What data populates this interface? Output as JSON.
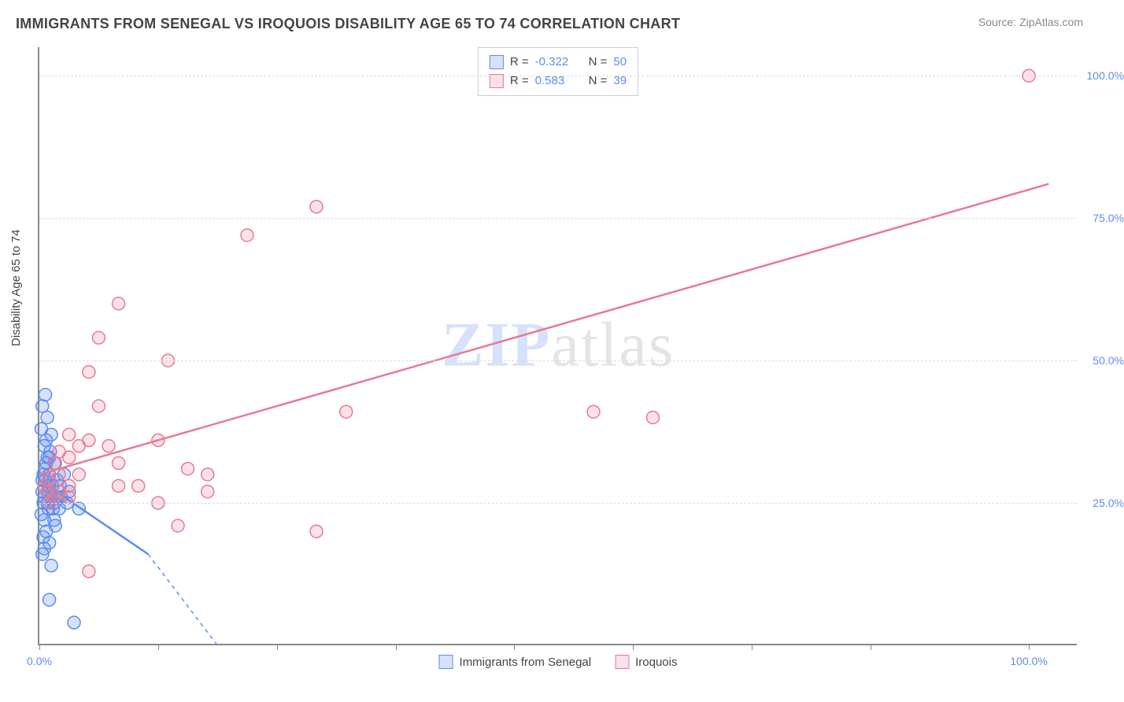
{
  "title": "IMMIGRANTS FROM SENEGAL VS IROQUOIS DISABILITY AGE 65 TO 74 CORRELATION CHART",
  "source": "Source: ZipAtlas.com",
  "yaxis_label": "Disability Age 65 to 74",
  "watermark_z": "ZIP",
  "watermark_rest": "atlas",
  "chart": {
    "type": "scatter",
    "xlim": [
      0,
      105
    ],
    "ylim": [
      0,
      105
    ],
    "x_ticks": [
      0,
      12,
      24,
      36,
      48,
      60,
      72,
      84,
      100
    ],
    "x_tick_labels": {
      "0": "0.0%",
      "100": "100.0%"
    },
    "y_gridlines": [
      25,
      50,
      75,
      100
    ],
    "y_tick_labels": {
      "25": "25.0%",
      "50": "50.0%",
      "75": "75.0%",
      "100": "100.0%"
    },
    "grid_color": "#dddddd",
    "axis_color": "#888888",
    "background_color": "#ffffff",
    "series": [
      {
        "name": "Immigrants from Senegal",
        "color_fill": "rgba(91,141,239,0.25)",
        "color_stroke": "#5b8def",
        "marker_radius": 8,
        "R": "-0.322",
        "N": "50",
        "trend": {
          "x1": 0,
          "y1": 29,
          "x2": 11,
          "y2": 16,
          "dash_x2": 18,
          "dash_y2": 0
        },
        "points": [
          [
            0.5,
            26
          ],
          [
            0.3,
            27
          ],
          [
            0.8,
            25
          ],
          [
            1.0,
            28
          ],
          [
            0.6,
            29
          ],
          [
            1.2,
            26
          ],
          [
            0.4,
            30
          ],
          [
            1.5,
            25
          ],
          [
            0.7,
            32
          ],
          [
            0.9,
            24
          ],
          [
            1.8,
            26
          ],
          [
            0.5,
            35
          ],
          [
            1.0,
            33
          ],
          [
            0.3,
            42
          ],
          [
            0.6,
            44
          ],
          [
            1.2,
            37
          ],
          [
            0.8,
            40
          ],
          [
            0.2,
            38
          ],
          [
            0.5,
            22
          ],
          [
            1.4,
            24
          ],
          [
            0.7,
            20
          ],
          [
            1.0,
            18
          ],
          [
            1.6,
            21
          ],
          [
            2.0,
            24
          ],
          [
            2.2,
            26
          ],
          [
            0.3,
            16
          ],
          [
            3.0,
            27
          ],
          [
            4.0,
            24
          ],
          [
            1.2,
            14
          ],
          [
            1.0,
            8
          ],
          [
            3.5,
            4
          ],
          [
            1.8,
            29
          ],
          [
            2.5,
            30
          ],
          [
            0.6,
            31
          ],
          [
            1.1,
            34
          ],
          [
            0.4,
            19
          ],
          [
            2.8,
            25
          ],
          [
            0.9,
            27
          ],
          [
            1.3,
            28
          ],
          [
            0.2,
            23
          ],
          [
            0.7,
            36
          ],
          [
            1.5,
            22
          ],
          [
            2.1,
            28
          ],
          [
            0.5,
            17
          ],
          [
            1.9,
            26
          ],
          [
            0.8,
            33
          ],
          [
            1.0,
            30
          ],
          [
            0.4,
            25
          ],
          [
            1.6,
            32
          ],
          [
            0.3,
            29
          ]
        ]
      },
      {
        "name": "Iroquois",
        "color_fill": "rgba(238,120,150,0.22)",
        "color_stroke": "#e57b95",
        "marker_radius": 8,
        "R": "0.583",
        "N": "39",
        "trend": {
          "x1": 0,
          "y1": 30,
          "x2": 102,
          "y2": 81
        },
        "points": [
          [
            100,
            100
          ],
          [
            62,
            40
          ],
          [
            56,
            41
          ],
          [
            31,
            41
          ],
          [
            28,
            20
          ],
          [
            28,
            77
          ],
          [
            21,
            72
          ],
          [
            17,
            30
          ],
          [
            17,
            27
          ],
          [
            15,
            31
          ],
          [
            14,
            21
          ],
          [
            13,
            50
          ],
          [
            12,
            36
          ],
          [
            12,
            25
          ],
          [
            10,
            28
          ],
          [
            8,
            60
          ],
          [
            8,
            32
          ],
          [
            8,
            28
          ],
          [
            7,
            35
          ],
          [
            6,
            54
          ],
          [
            6,
            42
          ],
          [
            5,
            48
          ],
          [
            5,
            36
          ],
          [
            5,
            13
          ],
          [
            4,
            35
          ],
          [
            4,
            30
          ],
          [
            3,
            37
          ],
          [
            3,
            33
          ],
          [
            3,
            28
          ],
          [
            3,
            26
          ],
          [
            2,
            34
          ],
          [
            2,
            30
          ],
          [
            2,
            27
          ],
          [
            1.5,
            32
          ],
          [
            1.5,
            26
          ],
          [
            1,
            29
          ],
          [
            1,
            25
          ],
          [
            0.8,
            27
          ],
          [
            0.5,
            28
          ]
        ]
      }
    ]
  },
  "legend_bottom": [
    {
      "label": "Immigrants from Senegal",
      "fill": "rgba(91,141,239,0.25)",
      "stroke": "#5b8def"
    },
    {
      "label": "Iroquois",
      "fill": "rgba(238,120,150,0.22)",
      "stroke": "#e57b95"
    }
  ]
}
